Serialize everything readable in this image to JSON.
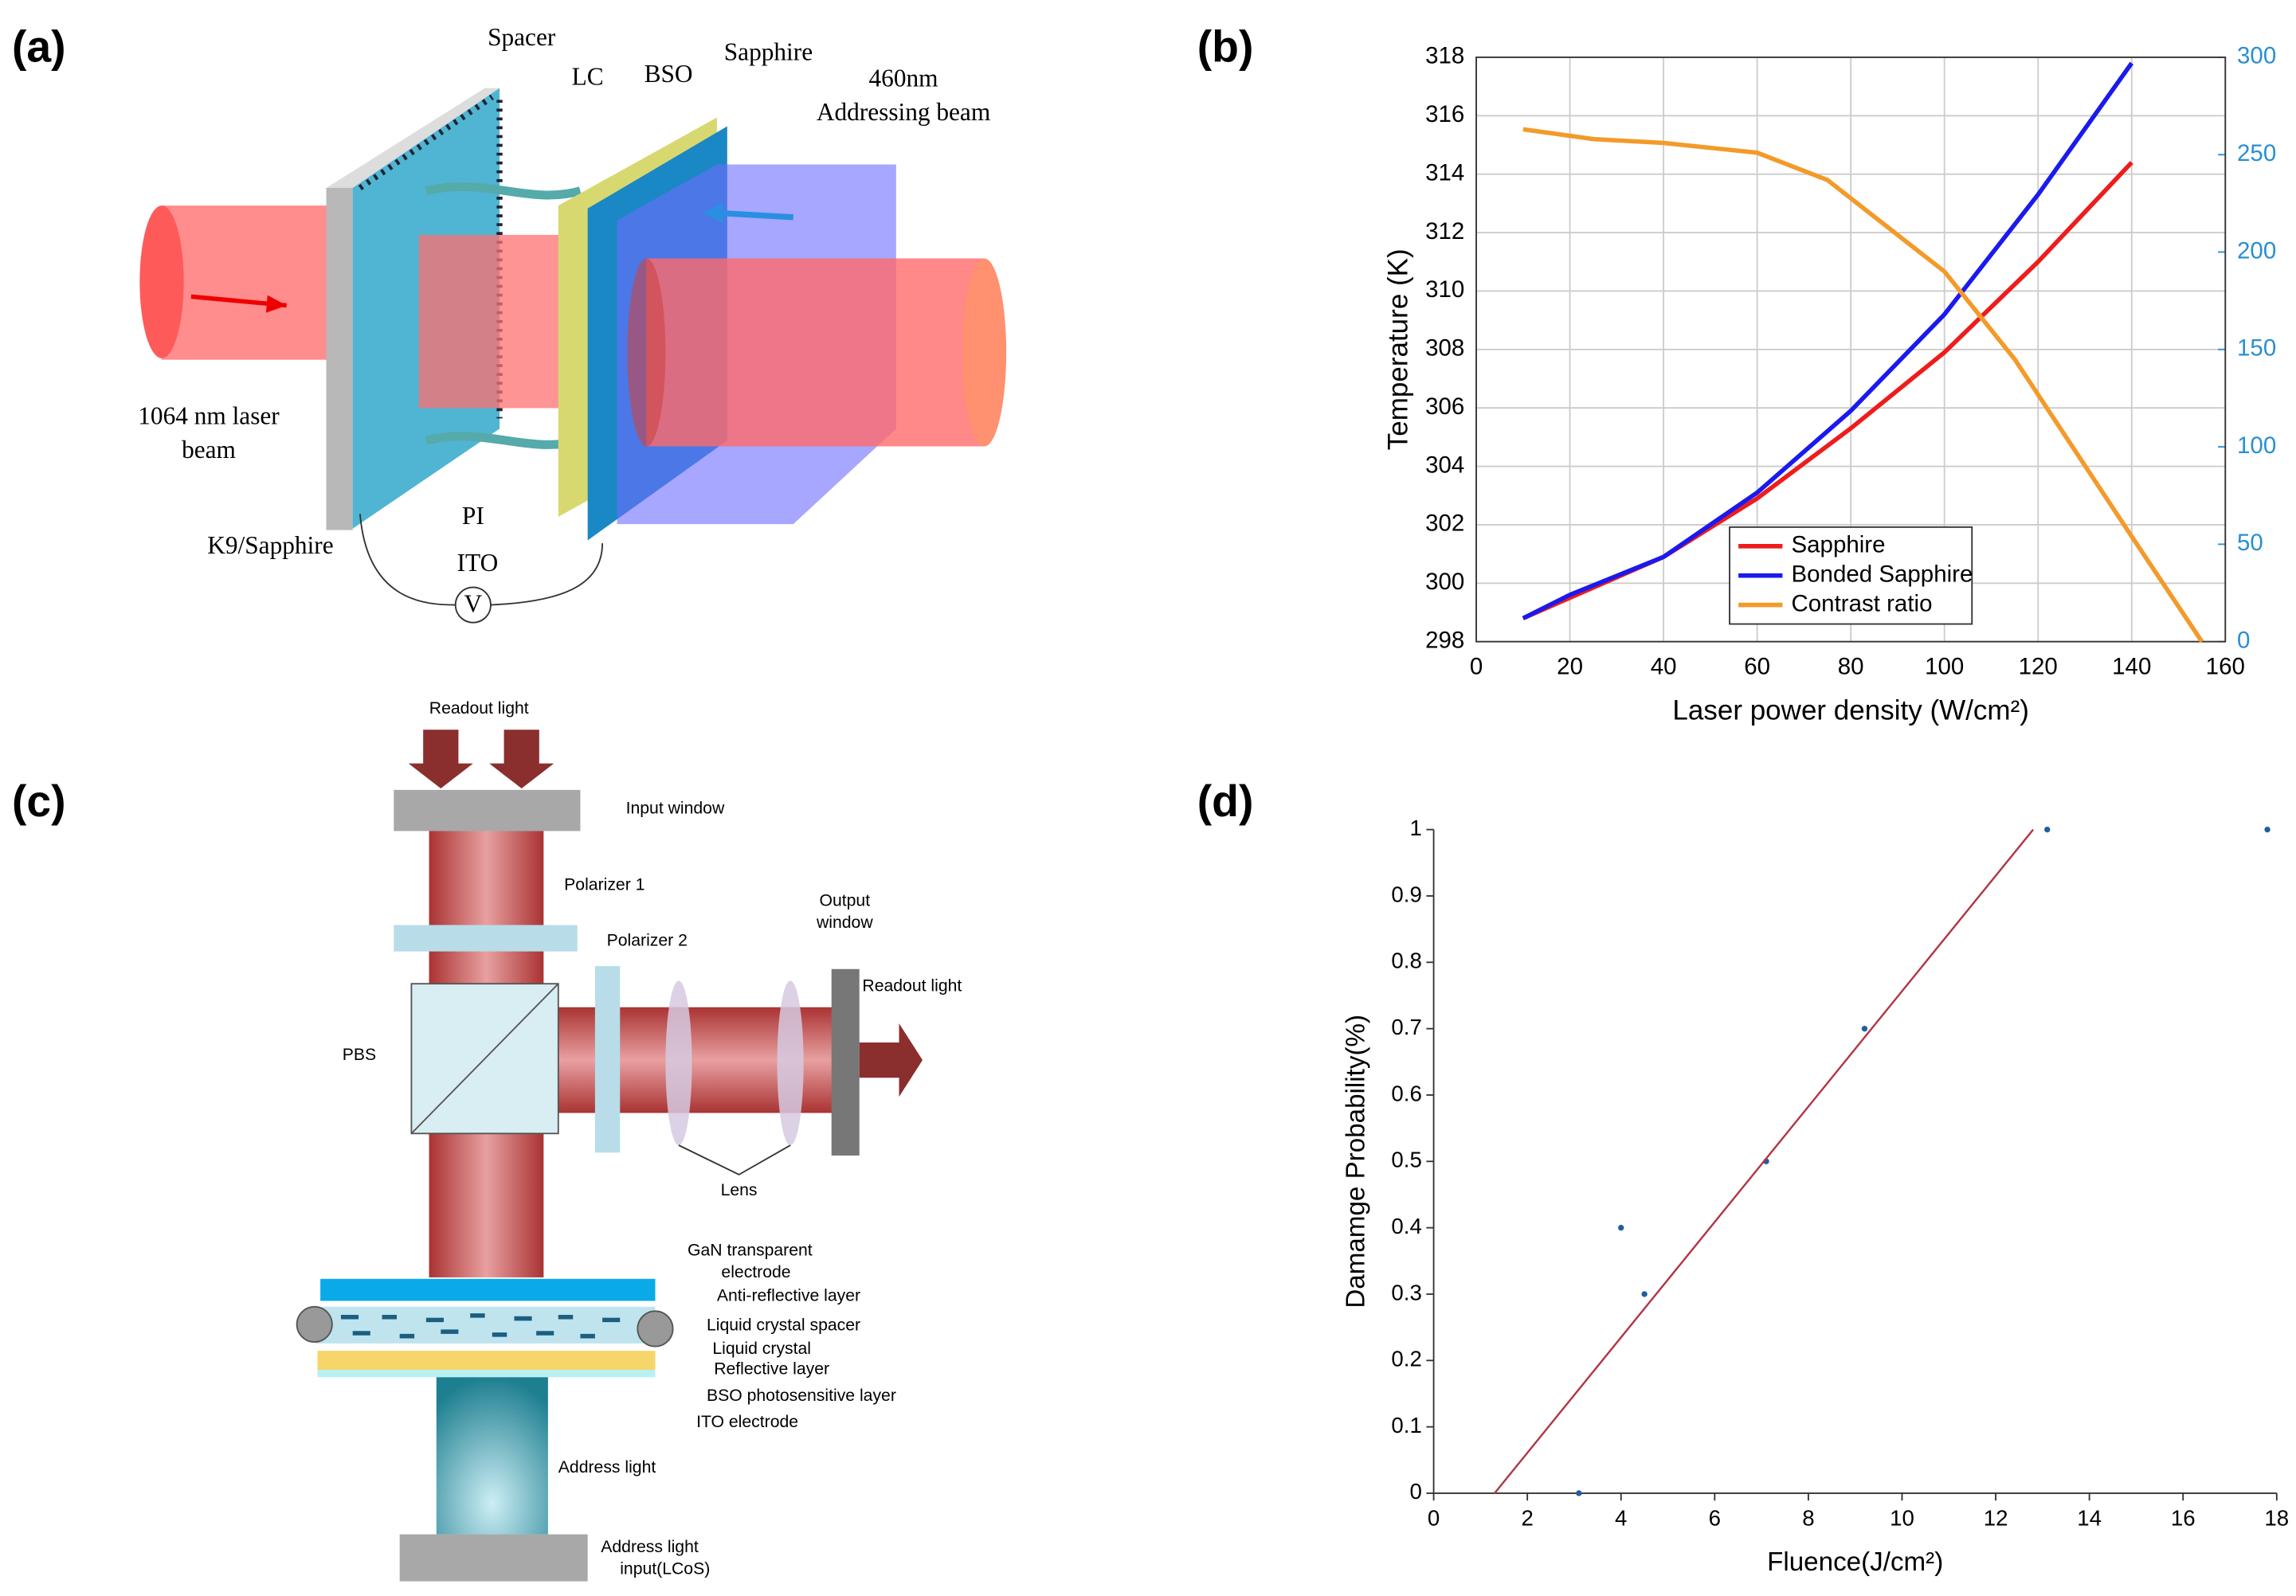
{
  "panel_labels": [
    "(a)",
    "(b)",
    "(c)",
    "(d)"
  ],
  "diagram_a": {
    "labels": [
      "Spacer",
      "LC",
      "BSO",
      "Sapphire",
      "460nm",
      "Addressing beam",
      "1064 nm laser",
      "beam",
      "K9/Sapphire",
      "PI",
      "ITO",
      "V"
    ]
  },
  "diagram_c": {
    "labels": [
      "Readout light",
      "Input window",
      "Polarizer 1",
      "Polarizer 2",
      "Output",
      "window",
      "Readout light",
      "PBS",
      "Lens",
      "GaN transparent",
      "electrode",
      "Anti-reflective layer",
      "Liquid crystal spacer",
      "Liquid crystal",
      "Reflective layer",
      "BSO photosensitive layer",
      "ITO electrode",
      "Address light",
      "Address light",
      "input(LCoS)"
    ]
  },
  "chart_data": [
    {
      "type": "line",
      "xlabel": "Laser power density (W/cm²)",
      "ylabel": "Temperature (K)",
      "xlim": [
        0,
        160
      ],
      "xticks": [
        0,
        20,
        40,
        60,
        80,
        100,
        120,
        140,
        160
      ],
      "ylim": [
        298,
        318
      ],
      "yticks": [
        298,
        300,
        302,
        304,
        306,
        308,
        310,
        312,
        314,
        316,
        318
      ],
      "y2lim": [
        0,
        300
      ],
      "y2ticks": [
        0,
        50,
        100,
        150,
        200,
        250,
        300
      ],
      "y2_color": "#2a8fd0",
      "grid": true,
      "frame": true,
      "legend": "lower center",
      "series": [
        {
          "name": "Sapphire",
          "color": "#ee1c1c",
          "x": [
            10,
            20,
            40,
            60,
            80,
            100,
            120,
            140
          ],
          "values": [
            298.8,
            299.5,
            300.9,
            302.9,
            305.3,
            307.9,
            311.0,
            314.4
          ]
        },
        {
          "name": "Bonded Sapphire",
          "color": "#1a1aee",
          "x": [
            10,
            20,
            40,
            60,
            80,
            100,
            120,
            140
          ],
          "values": [
            298.8,
            299.6,
            300.9,
            303.1,
            305.9,
            309.2,
            313.3,
            317.8
          ]
        },
        {
          "name": "Contrast ratio",
          "color": "#f39a2a",
          "axis": "y2",
          "x": [
            10,
            25,
            40,
            60,
            75,
            100,
            115,
            140,
            155
          ],
          "values": [
            263,
            258,
            256,
            251,
            237,
            190,
            145,
            54,
            0
          ]
        }
      ]
    },
    {
      "type": "scatter",
      "xlabel": "Fluence(J/cm²)",
      "ylabel": "Damamge Probability(%)",
      "xlim": [
        0,
        18
      ],
      "xticks": [
        0,
        2,
        4,
        6,
        8,
        10,
        12,
        14,
        16,
        18
      ],
      "ylim": [
        0,
        1
      ],
      "yticks": [
        0,
        0.1,
        0.2,
        0.3,
        0.4,
        0.5,
        0.6,
        0.7,
        0.8,
        0.9,
        1
      ],
      "grid": false,
      "frame": false,
      "series": [
        {
          "color": "#1f5f9f",
          "x": [
            3.1,
            4,
            4.5,
            7.1,
            9.2,
            13.1,
            17.8
          ],
          "values": [
            0,
            0.4,
            0.3,
            0.5,
            0.7,
            1,
            1
          ]
        },
        {
          "type": "line",
          "color": "#b03545",
          "x": [
            1.3,
            12.8
          ],
          "values": [
            0,
            1
          ]
        }
      ]
    }
  ]
}
